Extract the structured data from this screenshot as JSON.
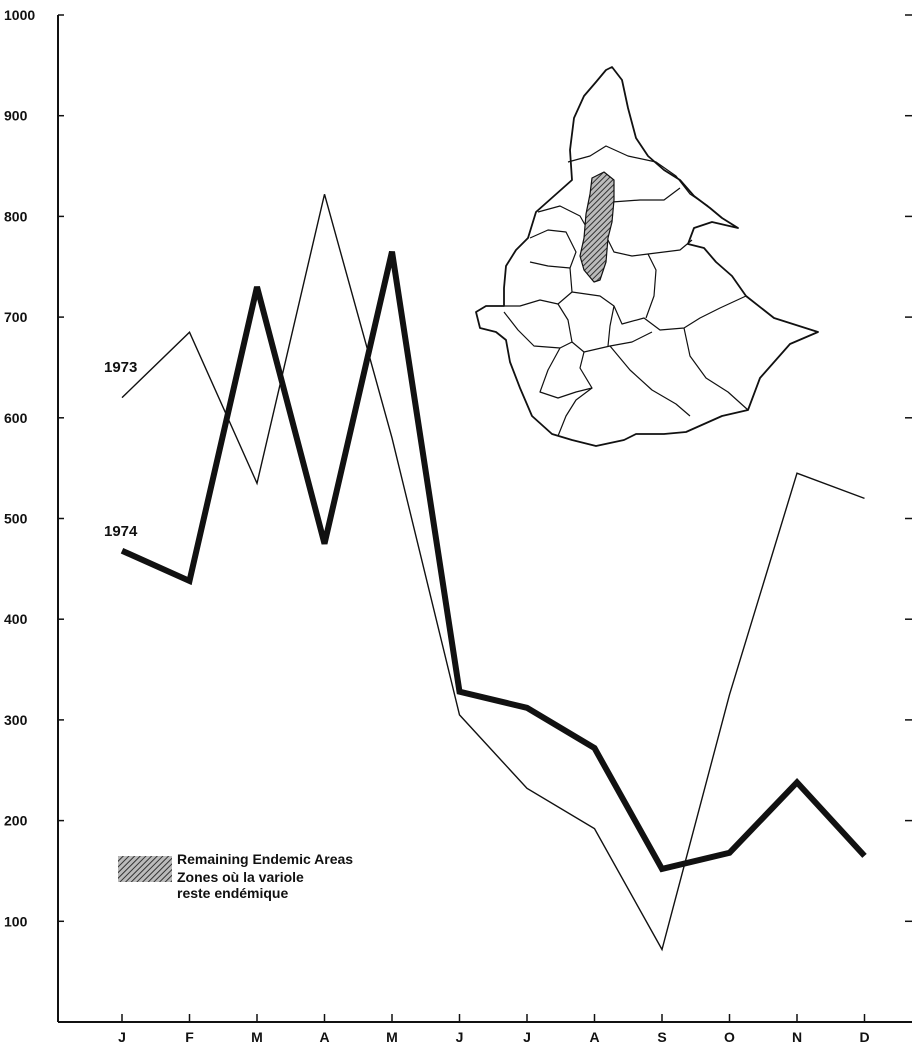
{
  "chart_data": {
    "type": "line",
    "categories": [
      "J",
      "F",
      "M",
      "A",
      "M",
      "J",
      "J",
      "A",
      "S",
      "O",
      "N",
      "D"
    ],
    "series": [
      {
        "name": "1973",
        "values": [
          620,
          685,
          535,
          822,
          580,
          305,
          232,
          192,
          72,
          325,
          545,
          520
        ],
        "color": "#111111",
        "weight": "thin"
      },
      {
        "name": "1974",
        "values": [
          468,
          438,
          730,
          475,
          765,
          328,
          312,
          272,
          152,
          168,
          238,
          165
        ],
        "color": "#111111",
        "weight": "thick"
      }
    ],
    "y_ticks": [
      "100",
      "200",
      "300",
      "400",
      "500",
      "600",
      "700",
      "800",
      "900",
      "1000"
    ],
    "ylim": [
      0,
      1000
    ],
    "legend": {
      "swatch": "hatched",
      "label_en": "Remaining Endemic Areas",
      "label_fr_1": "Zones où la variole",
      "label_fr_2": "reste endémique"
    },
    "inset": "map-of-ethiopia-with-hatched-endemic-area"
  }
}
